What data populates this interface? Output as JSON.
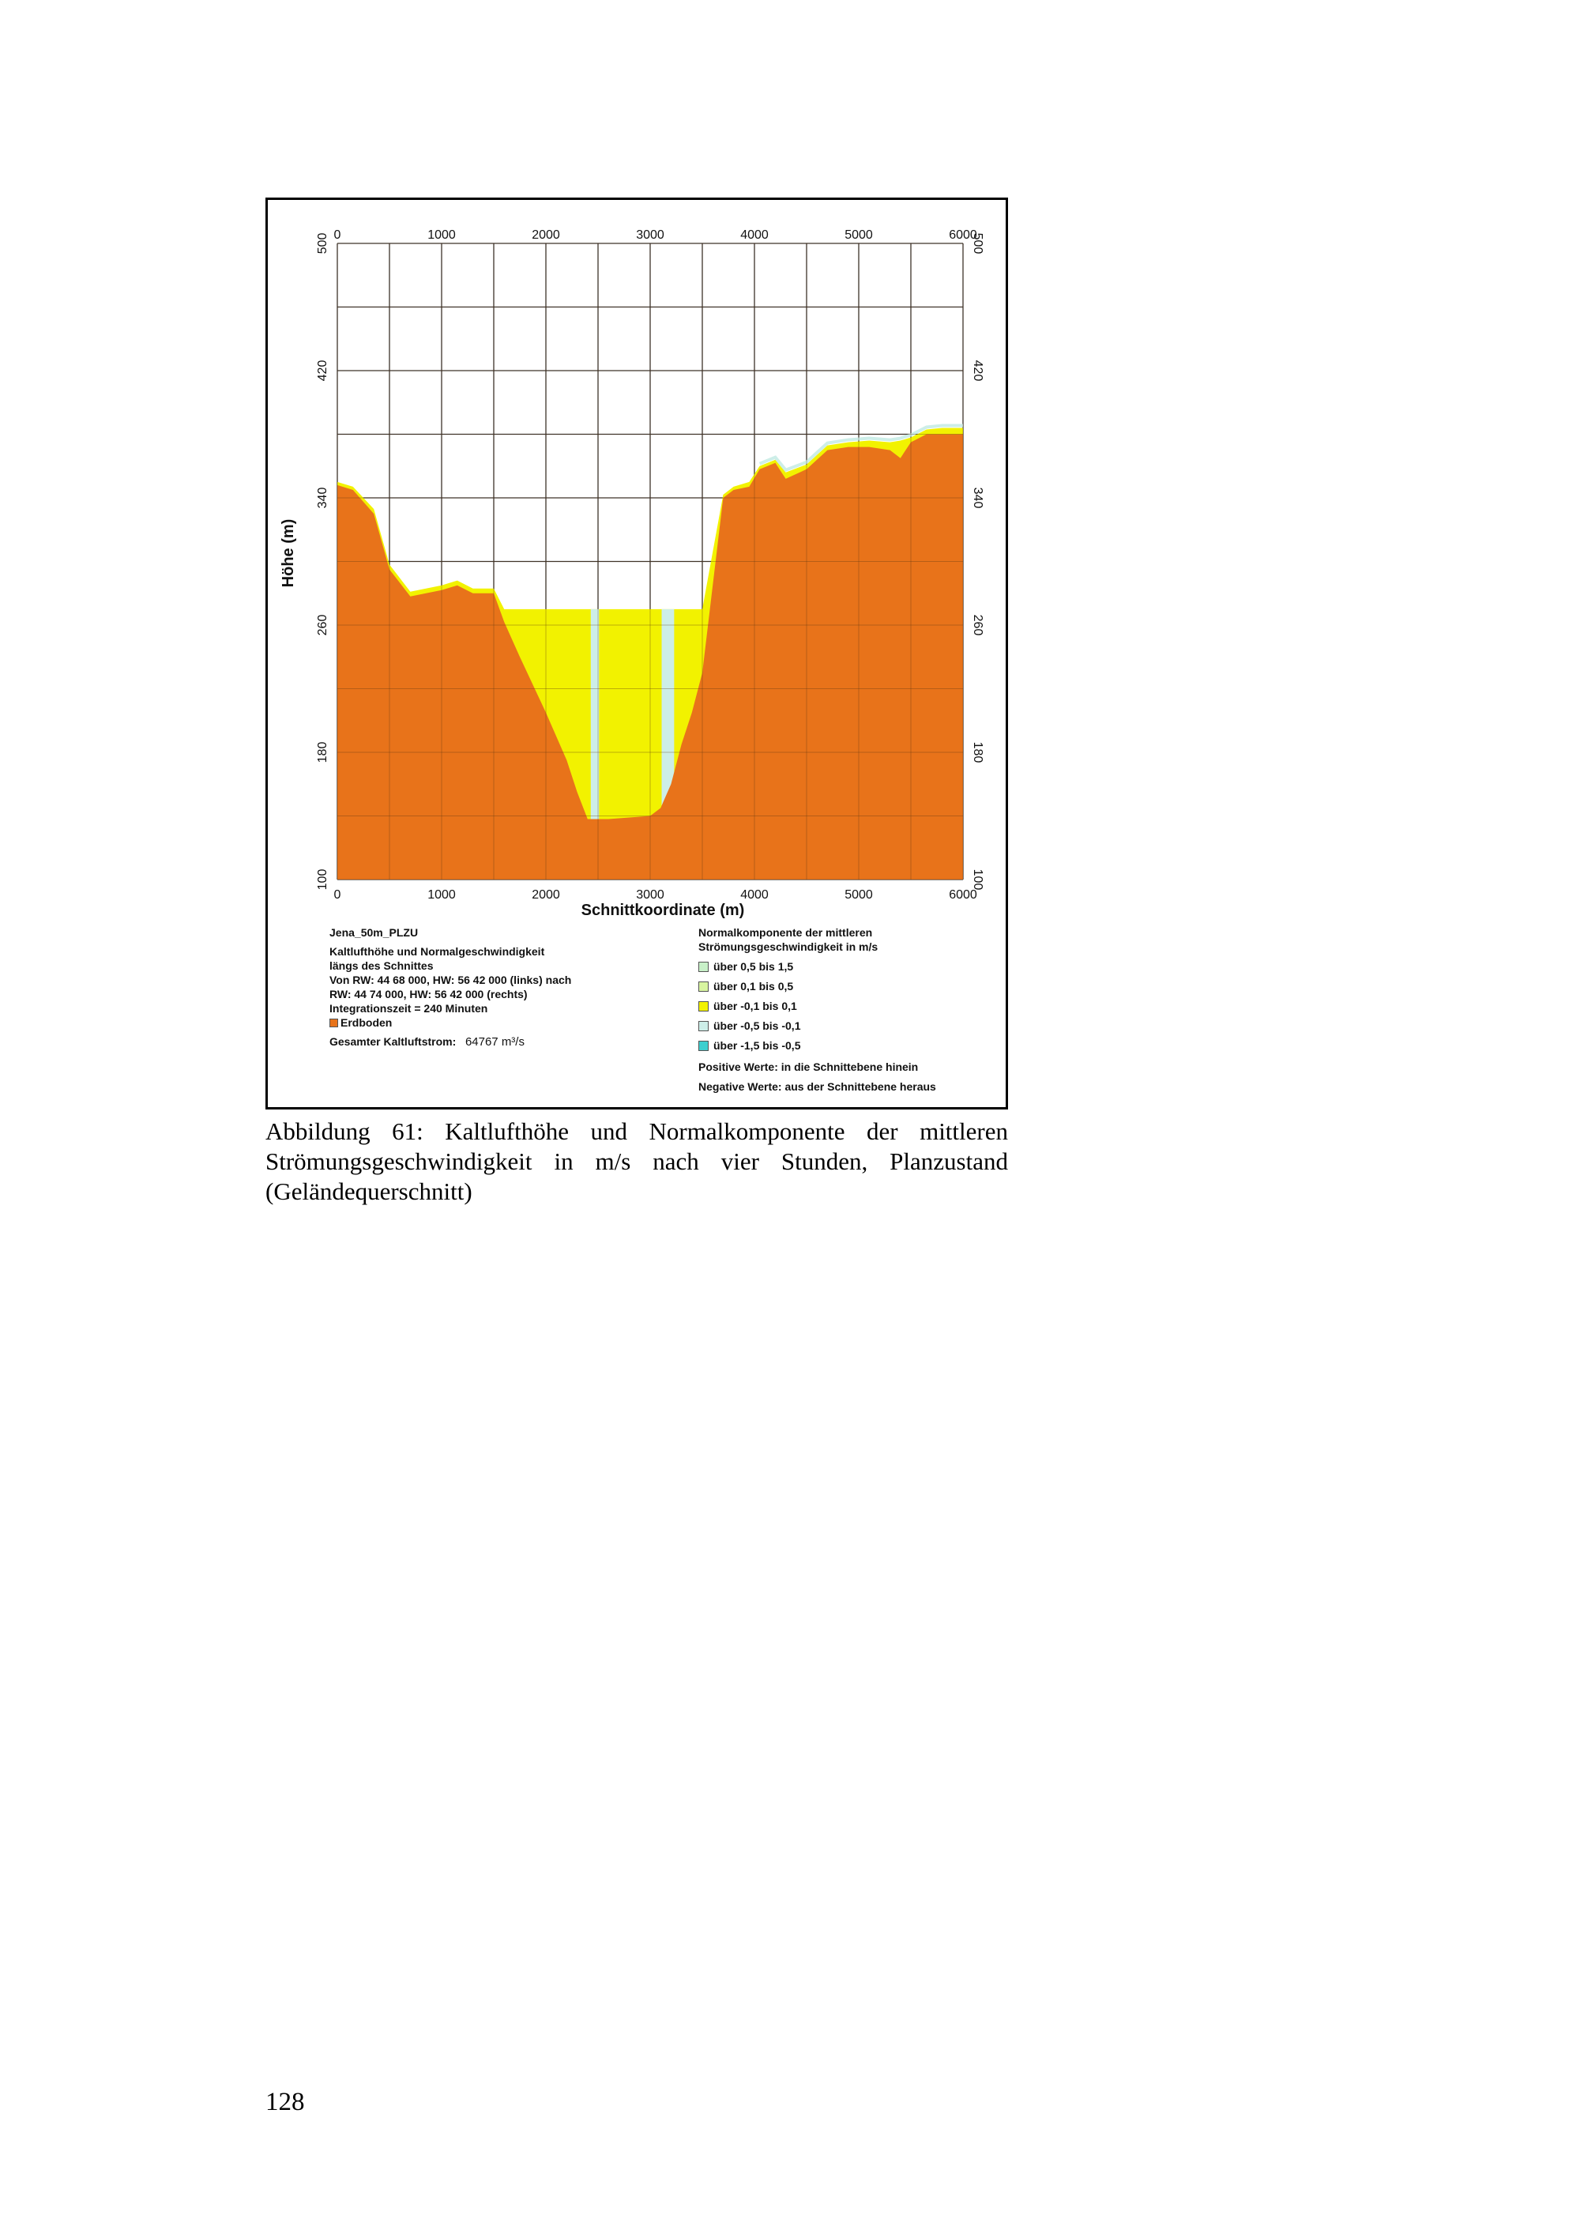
{
  "figure": {
    "panel_title": "Jena_50m_PLZU",
    "description_lines": [
      "Kaltlufthöhe und Normalgeschwindigkeit",
      "längs des Schnittes",
      "Von RW: 44 68 000, HW: 56 42 000 (links) nach",
      "RW: 44 74 000, HW: 56 42 000 (rechts)",
      "Integrationszeit = 240 Minuten"
    ],
    "ground_label": "Erdboden",
    "total_flow_label": "Gesamter Kaltluftstrom:",
    "total_flow_value": "64767 m³/s",
    "legend_title": [
      "Normalkomponente der mittleren",
      "Strömungsgeschwindigkeit in m/s"
    ],
    "legend_items": [
      {
        "label": "über 0,5 bis 1,5",
        "color": "#c8f0c8"
      },
      {
        "label": "über 0,1 bis 0,5",
        "color": "#d8f5a0"
      },
      {
        "label": "über -0,1 bis 0,1",
        "color": "#f2f200"
      },
      {
        "label": "über -0,5 bis -0,1",
        "color": "#cdeee8"
      },
      {
        "label": "über -1,5 bis -0,5",
        "color": "#3ecfcf"
      }
    ],
    "note_positive": "Positive Werte: in die Schnittebene hinein",
    "note_negative": "Negative Werte: aus der Schnittebene heraus"
  },
  "chart_data": {
    "type": "area",
    "xlabel": "Schnittkoordinate (m)",
    "ylabel": "Höhe (m)",
    "xlim": [
      0,
      6000
    ],
    "ylim": [
      100,
      500
    ],
    "x_ticks": [
      "0",
      "1000",
      "2000",
      "3000",
      "4000",
      "5000",
      "6000"
    ],
    "y_ticks": [
      "100",
      "180",
      "260",
      "340",
      "420",
      "500"
    ],
    "grid": true,
    "colors": {
      "ground": "#e8731a",
      "air_neutral": "#f2f200",
      "air_light": "#cdeee8"
    },
    "ground_profile": {
      "x": [
        0,
        150,
        350,
        500,
        700,
        1000,
        1150,
        1300,
        1500,
        1600,
        1750,
        2000,
        2200,
        2300,
        2400,
        2600,
        3000,
        3100,
        3200,
        3300,
        3400,
        3500,
        3700,
        3800,
        3950,
        4050,
        4200,
        4300,
        4500,
        4700,
        4900,
        5100,
        5300,
        5400,
        5500,
        5650,
        5800,
        6000
      ],
      "y": [
        348,
        345,
        330,
        295,
        278,
        282,
        285,
        280,
        280,
        262,
        240,
        205,
        175,
        155,
        138,
        138,
        140,
        145,
        160,
        185,
        205,
        230,
        340,
        345,
        347,
        358,
        362,
        352,
        358,
        370,
        372,
        372,
        370,
        365,
        375,
        380,
        380,
        380
      ]
    },
    "cold_air_top": {
      "x": [
        0,
        150,
        350,
        500,
        700,
        1000,
        1150,
        1300,
        1500,
        1600,
        2000,
        3000,
        3500,
        3700,
        3800,
        3950,
        4050,
        4200,
        4300,
        4500,
        4700,
        4900,
        5100,
        5300,
        5400,
        5500,
        5650,
        5800,
        6000
      ],
      "y": [
        350,
        347,
        333,
        298,
        281,
        285,
        288,
        283,
        283,
        270,
        270,
        270,
        270,
        342,
        347,
        350,
        360,
        364,
        356,
        361,
        373,
        375,
        376,
        375,
        376,
        378,
        383,
        384,
        384
      ]
    },
    "pool_surface": 270,
    "light_bands": [
      [
        2430,
        2510
      ],
      [
        3110,
        3230
      ]
    ]
  },
  "caption": "Abbildung 61: Kaltlufthöhe und Normalkomponente der mittleren Strömungsgeschwindigkeit in m/s nach vier Stunden, Planzustand (Geländequerschnitt)",
  "page_number": "128"
}
